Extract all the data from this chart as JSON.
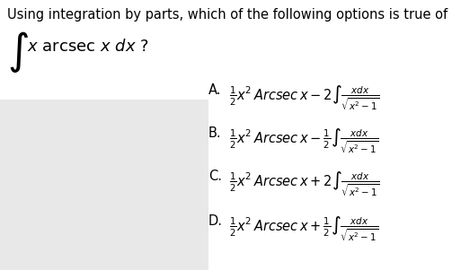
{
  "bg_color": "#ffffff",
  "title_text": "Using integration by parts, which of the following options is true of",
  "options": [
    {
      "label": "A.",
      "math": "$\\frac{1}{2}x^2\\,Arcsec\\,x - 2\\int\\frac{xdx}{\\sqrt{x^2-1}}$"
    },
    {
      "label": "B.",
      "math": "$\\frac{1}{2}x^2\\,Arcsec\\,x - \\frac{1}{2}\\int\\frac{xdx}{\\sqrt{x^2-1}}$"
    },
    {
      "label": "C.",
      "math": "$\\frac{1}{2}x^2\\,Arcsec\\,x + 2\\int\\frac{xdx}{\\sqrt{x^2-1}}$"
    },
    {
      "label": "D.",
      "math": "$\\frac{1}{2}x^2\\,Arcsec\\,x + \\frac{1}{2}\\int\\frac{xdx}{\\sqrt{x^2-1}}$"
    }
  ],
  "title_fontsize": 10.5,
  "question_fontsize": 13,
  "option_fontsize": 10.5,
  "option_label_fontsize": 10.5,
  "panel_color": "#e8e8e8",
  "text_color": "#000000",
  "figwidth": 5.03,
  "figheight": 3.01,
  "dpi": 100
}
